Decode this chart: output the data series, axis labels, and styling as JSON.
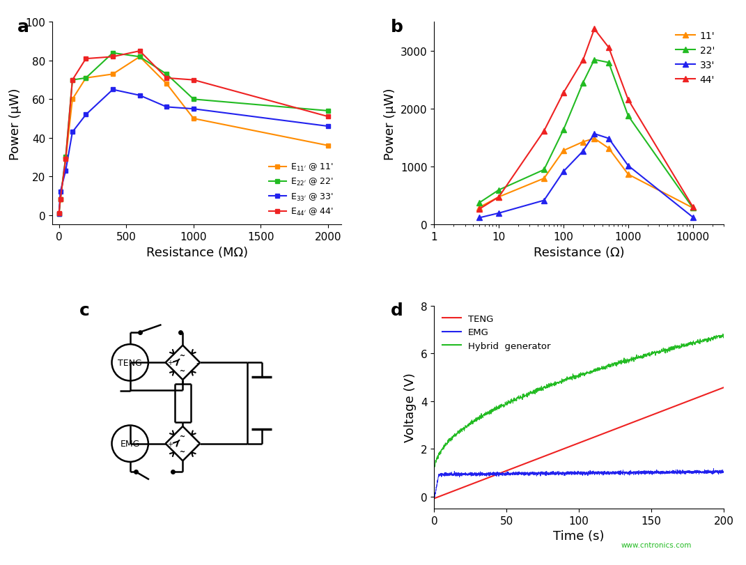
{
  "panel_a": {
    "xlabel": "Resistance (MΩ)",
    "ylabel": "Power (μW)",
    "xlim": [
      -50,
      2100
    ],
    "ylim": [
      -5,
      100
    ],
    "xticks": [
      0,
      500,
      1000,
      1500,
      2000
    ],
    "yticks": [
      0,
      20,
      40,
      60,
      80,
      100
    ],
    "series": [
      {
        "color": "#FF8C00",
        "marker": "s",
        "x": [
          0,
          10,
          50,
          100,
          200,
          400,
          600,
          800,
          1000,
          2000
        ],
        "y": [
          0.5,
          8,
          29,
          60,
          71,
          73,
          82,
          68,
          50,
          36
        ]
      },
      {
        "color": "#22BB22",
        "marker": "s",
        "x": [
          0,
          10,
          50,
          100,
          200,
          400,
          600,
          800,
          1000,
          2000
        ],
        "y": [
          0.5,
          8,
          30,
          70,
          71,
          84,
          82,
          73,
          60,
          54
        ]
      },
      {
        "color": "#2222EE",
        "marker": "s",
        "x": [
          0,
          10,
          50,
          100,
          200,
          400,
          600,
          800,
          1000,
          2000
        ],
        "y": [
          0.5,
          12,
          23,
          43,
          52,
          65,
          62,
          56,
          55,
          46
        ]
      },
      {
        "color": "#EE2222",
        "marker": "s",
        "x": [
          0,
          10,
          50,
          100,
          200,
          400,
          600,
          800,
          1000,
          2000
        ],
        "y": [
          1,
          8,
          29,
          70,
          81,
          82,
          85,
          71,
          70,
          51
        ]
      }
    ],
    "legend_labels": [
      "E$_{11'}$ @ 11'",
      "E$_{22'}$ @ 22'",
      "E$_{33'}$ @ 33'",
      "E$_{44'}$ @ 44'"
    ]
  },
  "panel_b": {
    "xlabel": "Resistance (Ω)",
    "ylabel": "Power (μW)",
    "ylim": [
      0,
      3500
    ],
    "yticks": [
      0,
      1000,
      2000,
      3000
    ],
    "xlim": [
      1,
      30000
    ],
    "xticks": [
      1,
      10,
      100,
      1000,
      10000
    ],
    "xticklabels": [
      "1",
      "10",
      "100",
      "1000",
      "10000"
    ],
    "series": [
      {
        "label": "11'",
        "color": "#FF8C00",
        "marker": "^",
        "x": [
          5,
          10,
          50,
          100,
          200,
          300,
          500,
          1000,
          10000
        ],
        "y": [
          300,
          480,
          800,
          1280,
          1430,
          1490,
          1320,
          870,
          290
        ]
      },
      {
        "label": "22'",
        "color": "#22BB22",
        "marker": "^",
        "x": [
          5,
          10,
          50,
          100,
          200,
          300,
          500,
          1000,
          10000
        ],
        "y": [
          380,
          600,
          950,
          1640,
          2450,
          2850,
          2800,
          1880,
          290
        ]
      },
      {
        "label": "33'",
        "color": "#2222EE",
        "marker": "^",
        "x": [
          5,
          10,
          50,
          100,
          200,
          300,
          500,
          1000,
          10000
        ],
        "y": [
          120,
          200,
          420,
          920,
          1270,
          1570,
          1490,
          1020,
          130
        ]
      },
      {
        "label": "44'",
        "color": "#EE2222",
        "marker": "^",
        "x": [
          5,
          10,
          50,
          100,
          200,
          300,
          500,
          1000,
          10000
        ],
        "y": [
          270,
          480,
          1620,
          2280,
          2840,
          3380,
          3060,
          2160,
          310
        ]
      }
    ]
  },
  "panel_d": {
    "xlabel": "Time (s)",
    "ylabel": "Voltage (V)",
    "xlim": [
      0,
      200
    ],
    "ylim": [
      -0.5,
      8
    ],
    "xticks": [
      0,
      50,
      100,
      150,
      200
    ],
    "yticks": [
      0,
      2,
      4,
      6,
      8
    ]
  },
  "background_color": "#FFFFFF",
  "panel_label_fontsize": 18,
  "tick_fontsize": 11,
  "axis_label_fontsize": 13
}
